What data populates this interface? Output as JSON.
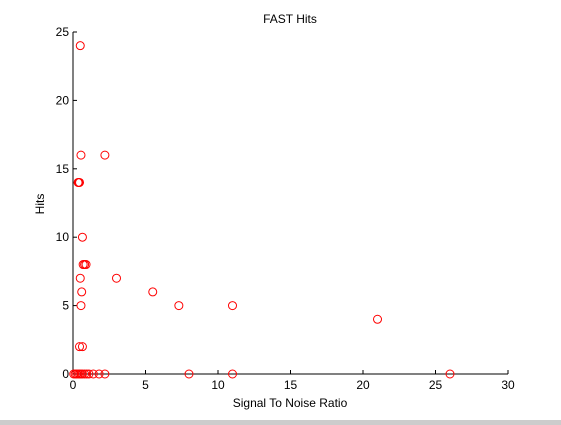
{
  "chart_data": {
    "type": "scatter",
    "title": "FAST Hits",
    "xlabel": "Signal To Noise Ratio",
    "ylabel": "Hits",
    "xlim": [
      0,
      30
    ],
    "ylim": [
      0,
      25
    ],
    "xticks": [
      0,
      5,
      10,
      15,
      20,
      25,
      30
    ],
    "yticks": [
      0,
      5,
      10,
      15,
      20,
      25
    ],
    "grid": false,
    "marker": "open-circle",
    "marker_color": "#ff0000",
    "series": [
      {
        "points": [
          [
            0.5,
            24
          ],
          [
            2.2,
            16
          ],
          [
            0.55,
            16
          ],
          [
            0.35,
            14
          ],
          [
            0.4,
            14
          ],
          [
            0.45,
            14
          ],
          [
            0.65,
            10
          ],
          [
            0.7,
            8
          ],
          [
            0.8,
            8
          ],
          [
            0.9,
            8
          ],
          [
            0.5,
            7
          ],
          [
            3.0,
            7
          ],
          [
            0.6,
            6
          ],
          [
            5.5,
            6
          ],
          [
            0.55,
            5
          ],
          [
            7.3,
            5
          ],
          [
            11.0,
            5
          ],
          [
            21.0,
            4
          ],
          [
            0.45,
            2
          ],
          [
            0.65,
            2
          ],
          [
            0.05,
            0
          ],
          [
            0.15,
            0
          ],
          [
            0.25,
            0
          ],
          [
            0.35,
            0
          ],
          [
            0.45,
            0
          ],
          [
            0.55,
            0
          ],
          [
            0.65,
            0
          ],
          [
            0.8,
            0
          ],
          [
            0.95,
            0
          ],
          [
            1.1,
            0
          ],
          [
            1.4,
            0
          ],
          [
            1.8,
            0
          ],
          [
            2.2,
            0
          ],
          [
            8.0,
            0
          ],
          [
            11.0,
            0
          ],
          [
            26.0,
            0
          ]
        ]
      }
    ]
  }
}
